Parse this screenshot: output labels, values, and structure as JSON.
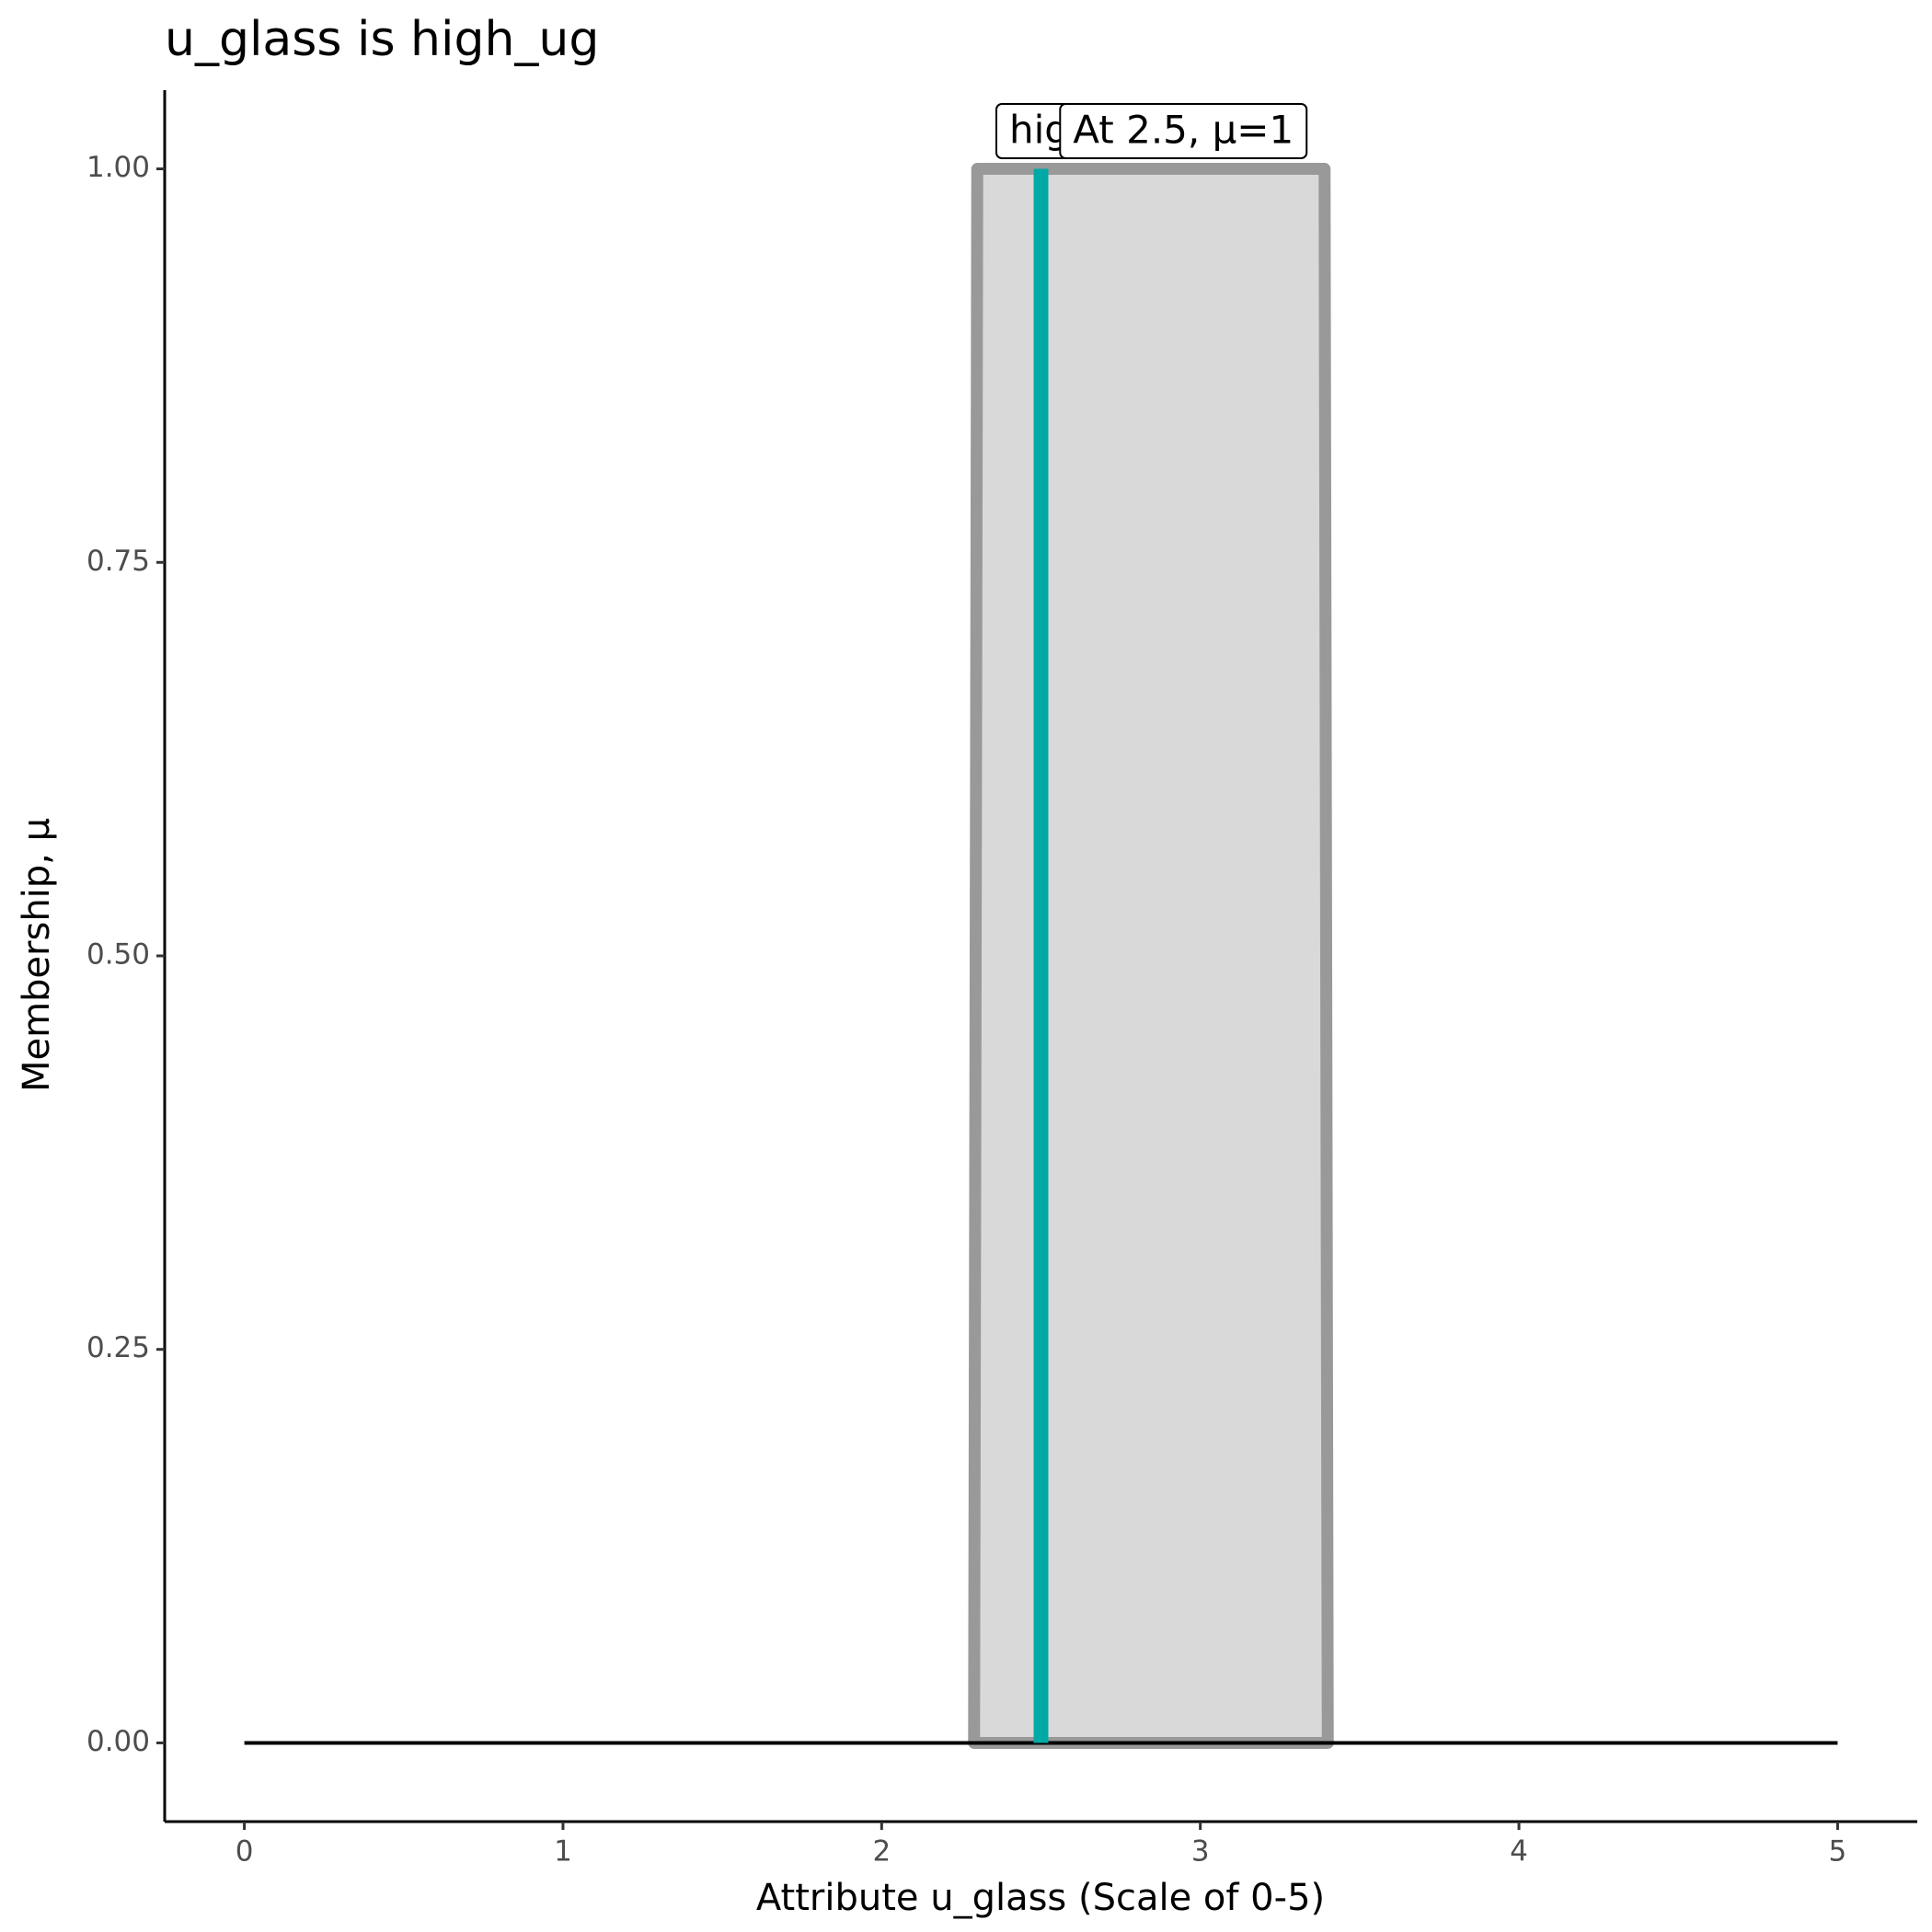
{
  "chart_data": {
    "type": "area",
    "title": "u_glass is high_ug",
    "x_label": "Attribute u_glass (Scale of 0-5)",
    "y_label": "Membership, μ",
    "xlim": [
      -0.25,
      5.25
    ],
    "ylim": [
      -0.05,
      1.05
    ],
    "xticks": [
      0,
      1,
      2,
      3,
      4,
      5
    ],
    "yticks": [
      {
        "value": 0,
        "label": "0.00"
      },
      {
        "value": 0.25,
        "label": "0.25"
      },
      {
        "value": 0.5,
        "label": "0.50"
      },
      {
        "value": 0.75,
        "label": "0.75"
      },
      {
        "value": 1,
        "label": "1.00"
      }
    ],
    "series": [
      {
        "name": "high_ug",
        "color": "#999999",
        "fill": "#d9d9d9",
        "x": [
          2.29,
          2.3,
          3.39,
          3.4
        ],
        "values": [
          0,
          1,
          1,
          0
        ]
      }
    ],
    "universe": {
      "color": "#000000",
      "x": [
        0,
        5
      ],
      "values": [
        0,
        0
      ]
    },
    "highlight": {
      "x": 2.5,
      "value": 1,
      "color": "#00a9a5",
      "label": "At 2.5, μ=1"
    }
  }
}
